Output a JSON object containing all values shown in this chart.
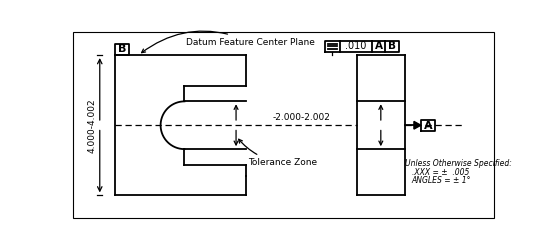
{
  "bg_color": "#ffffff",
  "line_color": "#000000",
  "label_datum_feature": "Datum Feature Center Plane",
  "label_tolerance_zone": "Tolerance Zone",
  "label_dim1": "4.000-4.002",
  "label_dim2": "-2.000-2.002",
  "label_B": "B",
  "label_A": "A",
  "label_unless": "Unless Otherwise Specified:",
  "label_xxx": ".XXX = ±  .005",
  "label_angles": "ANGLES = ± 1°",
  "lw": 1.3,
  "lw_thin": 0.9
}
